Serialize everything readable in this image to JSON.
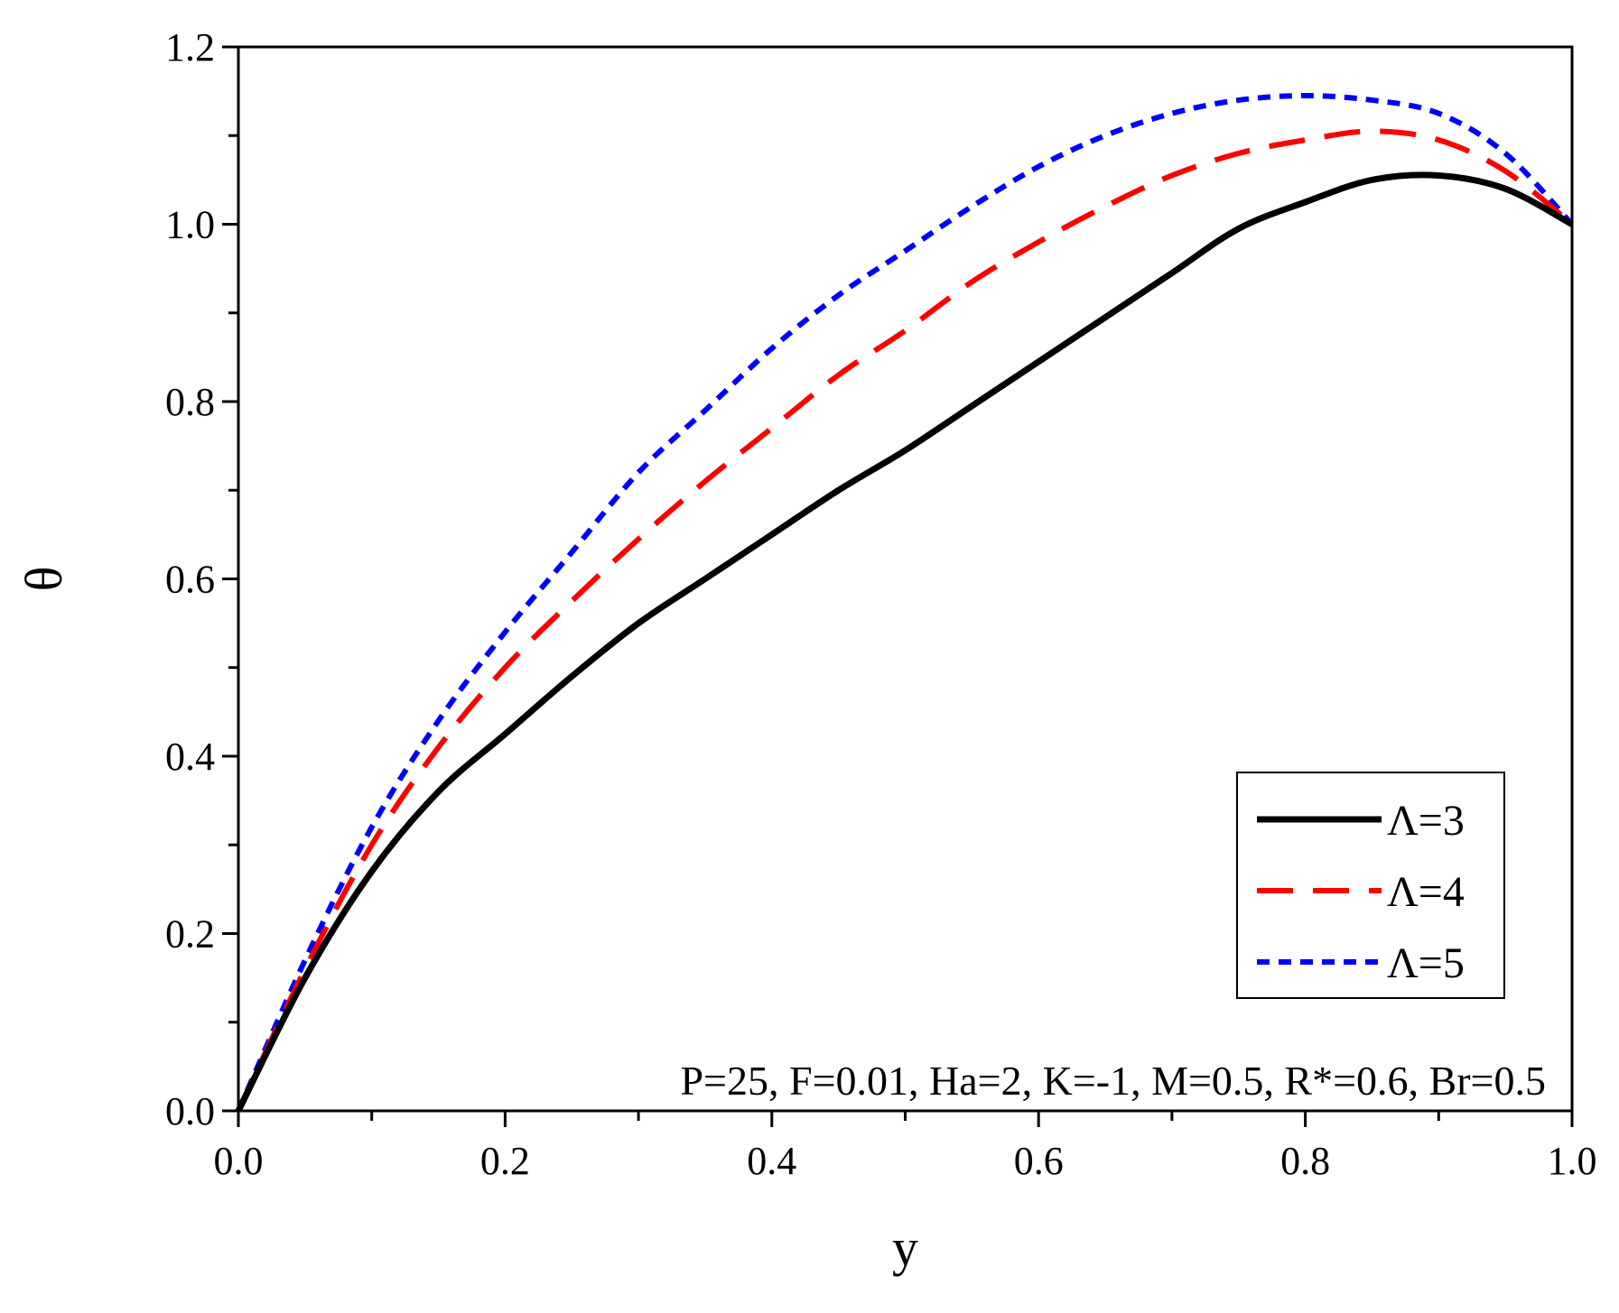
{
  "chart_data": {
    "type": "line",
    "title": "",
    "xlabel": "y",
    "ylabel": "θ",
    "xlim": [
      0.0,
      1.0
    ],
    "ylim": [
      0.0,
      1.2
    ],
    "x_ticks": [
      "0.0",
      "0.2",
      "0.4",
      "0.6",
      "0.8",
      "1.0"
    ],
    "y_ticks": [
      "0.0",
      "0.2",
      "0.4",
      "0.6",
      "0.8",
      "1.0",
      "1.2"
    ],
    "grid": false,
    "legend_position": "bottom-right",
    "annotation": "P=25, F=0.01, Ha=2, K=-1, M=0.5, R*=0.6, Br=0.5",
    "series": [
      {
        "name": "Λ=3",
        "color": "#000000",
        "style": "solid",
        "x": [
          0.0,
          0.05,
          0.1,
          0.15,
          0.2,
          0.25,
          0.3,
          0.35,
          0.4,
          0.45,
          0.5,
          0.55,
          0.6,
          0.65,
          0.7,
          0.75,
          0.8,
          0.85,
          0.9,
          0.95,
          1.0
        ],
        "y": [
          0.0,
          0.15,
          0.27,
          0.36,
          0.425,
          0.49,
          0.55,
          0.6,
          0.65,
          0.7,
          0.745,
          0.795,
          0.845,
          0.895,
          0.945,
          0.995,
          1.025,
          1.05,
          1.055,
          1.04,
          1.0
        ]
      },
      {
        "name": "Λ=4",
        "color": "#ff0000",
        "style": "dashed",
        "x": [
          0.0,
          0.05,
          0.1,
          0.15,
          0.2,
          0.25,
          0.3,
          0.35,
          0.4,
          0.45,
          0.5,
          0.55,
          0.6,
          0.65,
          0.7,
          0.75,
          0.8,
          0.85,
          0.9,
          0.95,
          1.0
        ],
        "y": [
          0.0,
          0.16,
          0.3,
          0.41,
          0.5,
          0.575,
          0.645,
          0.71,
          0.77,
          0.83,
          0.88,
          0.935,
          0.98,
          1.02,
          1.055,
          1.08,
          1.095,
          1.105,
          1.095,
          1.06,
          1.0
        ]
      },
      {
        "name": "Λ=5",
        "color": "#0000ff",
        "style": "dotted",
        "x": [
          0.0,
          0.05,
          0.1,
          0.15,
          0.2,
          0.25,
          0.3,
          0.35,
          0.4,
          0.45,
          0.5,
          0.55,
          0.6,
          0.65,
          0.7,
          0.75,
          0.8,
          0.85,
          0.9,
          0.95,
          1.0
        ],
        "y": [
          0.0,
          0.17,
          0.32,
          0.44,
          0.54,
          0.63,
          0.72,
          0.79,
          0.86,
          0.92,
          0.97,
          1.02,
          1.065,
          1.1,
          1.125,
          1.14,
          1.145,
          1.14,
          1.125,
          1.08,
          1.0
        ]
      }
    ]
  }
}
